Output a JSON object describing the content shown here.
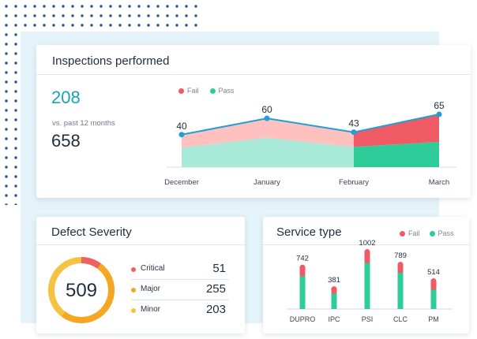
{
  "colors": {
    "fail": "#f05a64",
    "fail_light": "#ffc0c0",
    "pass": "#2ecc98",
    "pass_light": "#a8ead7",
    "line": "#1f9fd6",
    "critical": "#f06060",
    "major": "#f5a623",
    "minor": "#f5c242"
  },
  "inspections": {
    "title": "Inspections performed",
    "count": "208",
    "comparison_label": "vs. past 12 months",
    "comparison_value": "658",
    "legend": {
      "fail": "Fail",
      "pass": "Pass"
    }
  },
  "defect": {
    "title": "Defect Severity",
    "total": "509",
    "items": [
      {
        "label": "Critical",
        "value": "51"
      },
      {
        "label": "Major",
        "value": "255"
      },
      {
        "label": "Minor",
        "value": "203"
      }
    ]
  },
  "service": {
    "title": "Service type",
    "legend": {
      "fail": "Fail",
      "pass": "Pass"
    }
  },
  "chart_data": [
    {
      "type": "area",
      "title": "Inspections performed",
      "categories": [
        "December",
        "January",
        "February",
        "March"
      ],
      "totals": [
        40,
        60,
        43,
        65
      ],
      "series": [
        {
          "name": "Fail",
          "values": [
            16,
            24,
            18,
            34
          ]
        },
        {
          "name": "Pass",
          "values": [
            24,
            36,
            25,
            31
          ]
        }
      ],
      "ylim": [
        0,
        65
      ]
    },
    {
      "type": "bar",
      "title": "Service type",
      "categories": [
        "DUPRO",
        "IPC",
        "PSI",
        "CLC",
        "PM"
      ],
      "totals": [
        742,
        381,
        1002,
        789,
        514
      ],
      "series": [
        {
          "name": "Fail",
          "values": [
            160,
            90,
            200,
            150,
            160
          ]
        },
        {
          "name": "Pass",
          "values": [
            582,
            291,
            802,
            639,
            354
          ]
        }
      ],
      "ylim": [
        0,
        1002
      ]
    }
  ]
}
